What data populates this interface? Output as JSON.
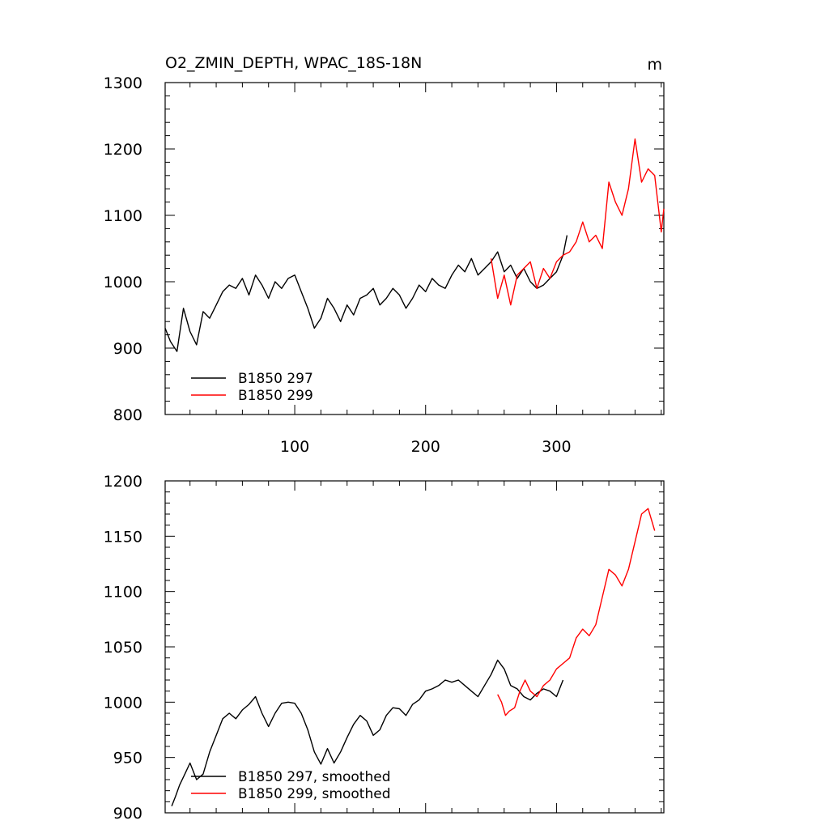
{
  "chart_data": [
    {
      "type": "line",
      "title": "O2_ZMIN_DEPTH, WPAC_18S-18N",
      "units": "m",
      "xlim": [
        1,
        382
      ],
      "ylim": [
        800,
        1300
      ],
      "xticks": [
        100,
        200,
        300
      ],
      "yticks": [
        800,
        900,
        1000,
        1100,
        1200,
        1300
      ],
      "legend": "bottom-left",
      "series": [
        {
          "name": "B1850 297",
          "color": "#000000",
          "x": [
            1,
            5,
            10,
            15,
            20,
            25,
            30,
            35,
            40,
            45,
            50,
            55,
            60,
            65,
            70,
            75,
            80,
            85,
            90,
            95,
            100,
            105,
            110,
            115,
            120,
            125,
            130,
            135,
            140,
            145,
            150,
            155,
            160,
            165,
            170,
            175,
            180,
            185,
            190,
            195,
            200,
            205,
            210,
            215,
            220,
            225,
            230,
            235,
            240,
            245,
            250,
            255,
            260,
            265,
            270,
            275,
            280,
            285,
            290,
            295,
            300,
            305,
            308
          ],
          "y": [
            930,
            910,
            895,
            960,
            925,
            905,
            955,
            945,
            965,
            985,
            995,
            990,
            1005,
            980,
            1010,
            995,
            975,
            1000,
            990,
            1005,
            1010,
            985,
            960,
            930,
            945,
            975,
            960,
            940,
            965,
            950,
            975,
            980,
            990,
            965,
            975,
            990,
            980,
            960,
            975,
            995,
            985,
            1005,
            995,
            990,
            1010,
            1025,
            1015,
            1035,
            1010,
            1020,
            1030,
            1045,
            1015,
            1025,
            1005,
            1020,
            1000,
            990,
            995,
            1005,
            1015,
            1040,
            1070
          ]
        },
        {
          "name": "B1850 299",
          "color": "#ff0000",
          "x": [
            250,
            255,
            260,
            265,
            270,
            275,
            280,
            285,
            290,
            295,
            300,
            305,
            310,
            315,
            320,
            325,
            330,
            335,
            340,
            345,
            350,
            355,
            360,
            365,
            370,
            375,
            380,
            382
          ],
          "y": [
            1035,
            975,
            1010,
            965,
            1010,
            1020,
            1030,
            990,
            1020,
            1005,
            1030,
            1040,
            1045,
            1060,
            1090,
            1060,
            1070,
            1050,
            1150,
            1120,
            1100,
            1140,
            1215,
            1150,
            1170,
            1160,
            1075,
            1110
          ]
        }
      ]
    },
    {
      "type": "line",
      "title": "",
      "xlim": [
        1,
        382
      ],
      "ylim": [
        900,
        1200
      ],
      "yticks": [
        900,
        950,
        1000,
        1050,
        1100,
        1150,
        1200
      ],
      "legend": "bottom-left",
      "series": [
        {
          "name": "B1850 297, smoothed",
          "color": "#000000",
          "x": [
            6,
            9,
            12,
            16,
            20,
            25,
            30,
            35,
            40,
            45,
            50,
            55,
            60,
            65,
            70,
            75,
            80,
            85,
            90,
            95,
            100,
            105,
            110,
            115,
            120,
            125,
            130,
            135,
            140,
            145,
            150,
            155,
            160,
            165,
            170,
            175,
            180,
            185,
            190,
            195,
            200,
            205,
            210,
            215,
            220,
            225,
            230,
            235,
            240,
            245,
            250,
            255,
            260,
            265,
            270,
            275,
            280,
            285,
            290,
            295,
            300,
            305
          ],
          "y": [
            906,
            915,
            925,
            935,
            945,
            930,
            935,
            955,
            970,
            985,
            990,
            985,
            993,
            998,
            1005,
            990,
            978,
            990,
            999,
            1000,
            999,
            990,
            975,
            955,
            944,
            958,
            945,
            955,
            968,
            980,
            988,
            983,
            970,
            975,
            988,
            995,
            994,
            988,
            998,
            1002,
            1010,
            1012,
            1015,
            1020,
            1018,
            1020,
            1015,
            1010,
            1005,
            1015,
            1025,
            1038,
            1030,
            1015,
            1012,
            1005,
            1002,
            1008,
            1012,
            1010,
            1005,
            1020
          ]
        },
        {
          "name": "B1850 299, smoothed",
          "color": "#ff0000",
          "x": [
            255,
            258,
            261,
            264,
            268,
            272,
            276,
            280,
            285,
            290,
            295,
            300,
            305,
            310,
            315,
            320,
            325,
            330,
            335,
            340,
            345,
            350,
            355,
            360,
            365,
            370,
            375
          ],
          "y": [
            1007,
            1000,
            988,
            992,
            995,
            1010,
            1020,
            1010,
            1005,
            1015,
            1020,
            1030,
            1035,
            1040,
            1058,
            1066,
            1060,
            1070,
            1095,
            1120,
            1115,
            1105,
            1120,
            1145,
            1170,
            1175,
            1155
          ]
        }
      ]
    }
  ]
}
